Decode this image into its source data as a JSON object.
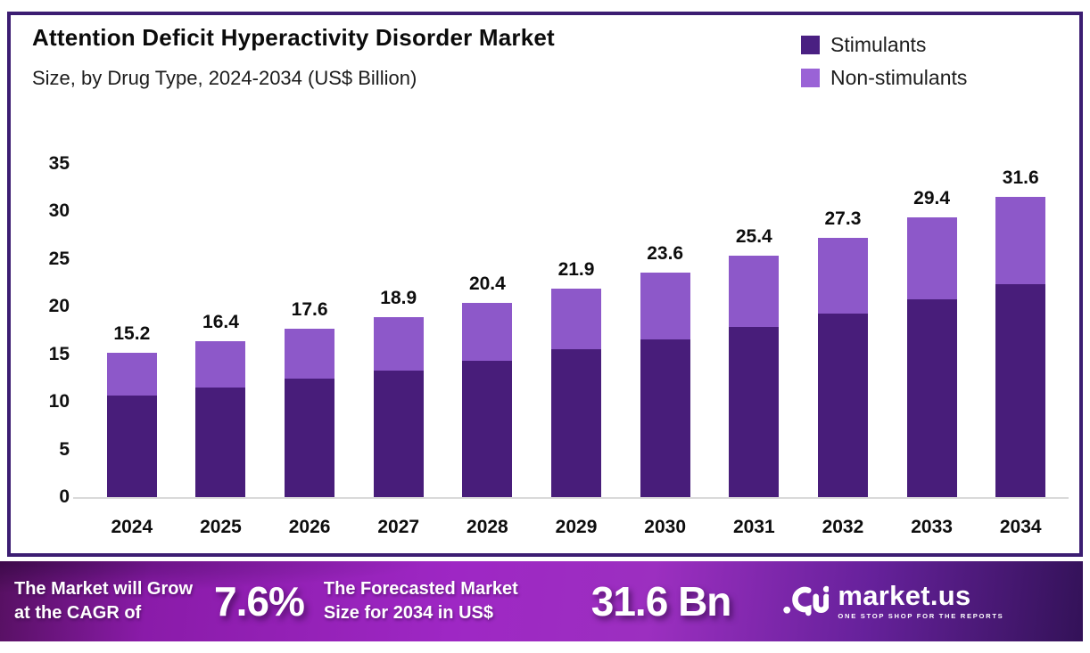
{
  "header": {
    "title": "Attention Deficit Hyperactivity Disorder Market",
    "subtitle": "Size, by Drug Type, 2024-2034 (US$ Billion)"
  },
  "legend": {
    "items": [
      {
        "label": "Stimulants",
        "color": "#4a2082"
      },
      {
        "label": "Non-stimulants",
        "color": "#9a63d6"
      }
    ]
  },
  "chart_data": {
    "type": "bar",
    "stacked": true,
    "title": "Attention Deficit Hyperactivity Disorder Market Size, by Drug Type, 2024-2034 (US$ Billion)",
    "categories": [
      "2024",
      "2025",
      "2026",
      "2027",
      "2028",
      "2029",
      "2030",
      "2031",
      "2032",
      "2033",
      "2034"
    ],
    "series": [
      {
        "name": "Stimulants",
        "color": "#481d7a",
        "values": [
          10.7,
          11.5,
          12.4,
          13.3,
          14.3,
          15.5,
          16.6,
          17.9,
          19.3,
          20.8,
          22.4
        ]
      },
      {
        "name": "Non-stimulants",
        "color": "#8d58c9",
        "values": [
          4.5,
          4.9,
          5.2,
          5.6,
          6.1,
          6.4,
          7.0,
          7.5,
          8.0,
          8.6,
          9.2
        ]
      }
    ],
    "totals": [
      15.2,
      16.4,
      17.6,
      18.9,
      20.4,
      21.9,
      23.6,
      25.4,
      27.3,
      29.4,
      31.6
    ],
    "total_labels": [
      "15.2",
      "16.4",
      "17.6",
      "18.9",
      "20.4",
      "21.9",
      "23.6",
      "25.4",
      "27.3",
      "29.4",
      "31.6"
    ],
    "xlabel": "",
    "ylabel": "",
    "ylim": [
      0,
      35
    ],
    "yticks": [
      35,
      30,
      25,
      20,
      15,
      10,
      5,
      0
    ],
    "grid": false,
    "legend_position": "top-right"
  },
  "colors": {
    "panel_border": "#3c1d72",
    "axis_line": "#d9d9d9",
    "banner_center": "#9e27c4"
  },
  "banner": {
    "cagr_line1": "The Market will Grow",
    "cagr_line2": "at the CAGR of",
    "cagr_value": "7.6%",
    "forecast_line1": "The Forecasted Market",
    "forecast_line2": "Size for 2034 in US$",
    "forecast_value": "31.6 Bn",
    "brand": "market.us",
    "brand_tagline": "ONE STOP SHOP FOR THE REPORTS"
  }
}
